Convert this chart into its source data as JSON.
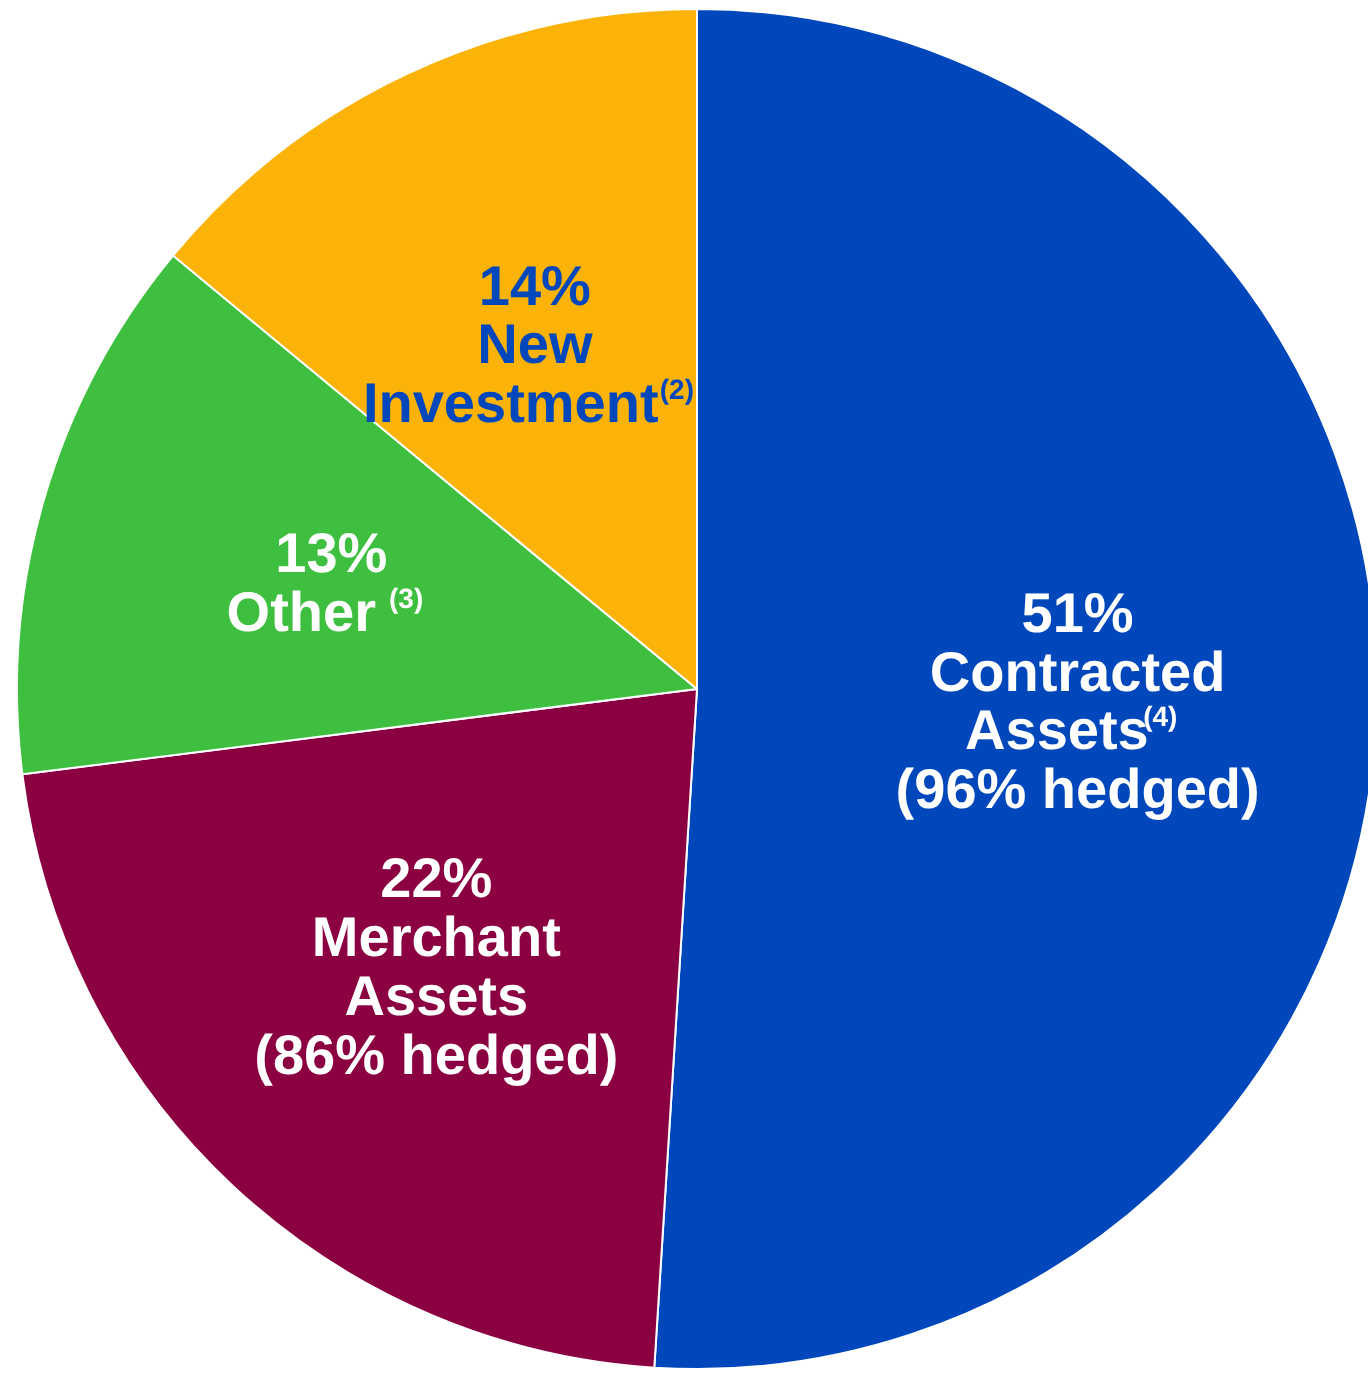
{
  "chart_data": {
    "type": "pie",
    "categories": [
      "Contracted\nAssets$^{(4)}$\n(96% hedged)",
      "Merchant\nAssets\n(86% hedged)",
      "Other $^{(3)}$",
      "New\nInvestment$^{(2)}$"
    ],
    "values": [
      51,
      22,
      13,
      14
    ],
    "colors": [
      "#0047bb",
      "#8b0040",
      "#3fbf3f",
      "#fbb30a"
    ],
    "value_labels": [
      "51%",
      "22%",
      "13%",
      "14%"
    ]
  }
}
